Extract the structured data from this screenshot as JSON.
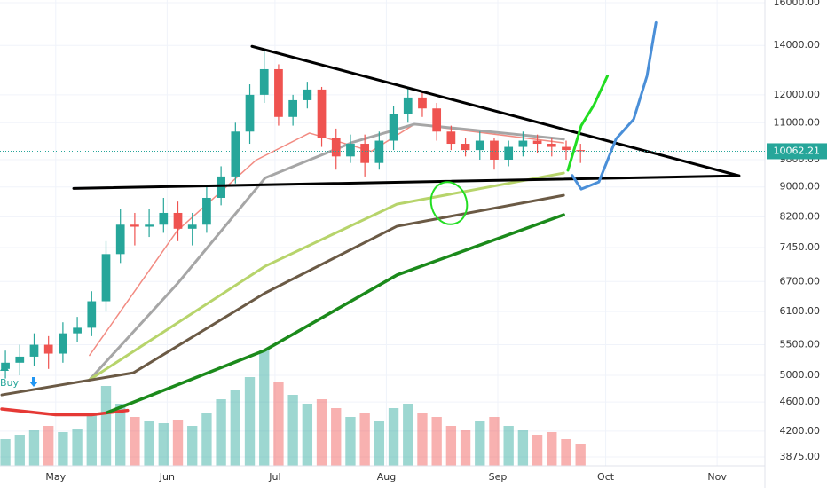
{
  "chart_data": {
    "type": "candlestick",
    "log_scale": true,
    "grid": true,
    "ylim": [
      3875,
      16000
    ],
    "yticks": [
      {
        "value": 3875,
        "label": "3875.00"
      },
      {
        "value": 4200,
        "label": "4200.00"
      },
      {
        "value": 4600,
        "label": "4600.00"
      },
      {
        "value": 5000,
        "label": "5000.00"
      },
      {
        "value": 5500,
        "label": "5500.00"
      },
      {
        "value": 6100,
        "label": "6100.00"
      },
      {
        "value": 6700,
        "label": "6700.00"
      },
      {
        "value": 7450,
        "label": "7450.00"
      },
      {
        "value": 8200,
        "label": "8200.00"
      },
      {
        "value": 9000,
        "label": "9000.00"
      },
      {
        "value": 9800,
        "label": "9800.00"
      },
      {
        "value": 11000,
        "label": "11000.00"
      },
      {
        "value": 12000,
        "label": "12000.00"
      },
      {
        "value": 14000,
        "label": "14000.00"
      },
      {
        "value": 16000,
        "label": "16000.00"
      }
    ],
    "xlim": [
      -15.5,
      197.3
    ],
    "xticks": [
      {
        "value": 0,
        "label": "May"
      },
      {
        "value": 31,
        "label": "Jun"
      },
      {
        "value": 61,
        "label": "Jul"
      },
      {
        "value": 92,
        "label": "Aug"
      },
      {
        "value": 123,
        "label": "Sep"
      },
      {
        "value": 153,
        "label": "Oct"
      },
      {
        "value": 184,
        "label": "Nov"
      }
    ],
    "up_color": "#26a69a",
    "down_color": "#ef5350",
    "x": [
      -14,
      -10,
      -6,
      -2,
      2,
      6,
      10,
      14,
      18,
      22,
      26,
      30,
      34,
      38,
      42,
      46,
      50,
      54,
      58,
      62,
      66,
      70,
      74,
      78,
      82,
      86,
      90,
      94,
      98,
      102,
      106,
      110,
      114,
      118,
      122,
      126,
      130,
      134,
      138,
      142,
      146
    ],
    "open": [
      5100,
      5200,
      5300,
      5500,
      5350,
      5700,
      5800,
      6300,
      7300,
      8000,
      7950,
      8000,
      8300,
      7900,
      8000,
      8700,
      9300,
      10700,
      12000,
      13000,
      11200,
      11800,
      12200,
      10500,
      9900,
      10300,
      9700,
      10400,
      11300,
      11900,
      11500,
      10700,
      10300,
      10100,
      10400,
      9800,
      10200,
      10400,
      10300,
      10200,
      10100
    ],
    "high": [
      5400,
      5500,
      5700,
      5650,
      5900,
      6000,
      6500,
      7600,
      8400,
      8300,
      8400,
      8700,
      8600,
      8300,
      9000,
      9600,
      11000,
      12400,
      13800,
      13200,
      12000,
      12500,
      12300,
      10800,
      10600,
      10600,
      10700,
      11600,
      12300,
      12100,
      11700,
      10900,
      10500,
      10700,
      10500,
      10400,
      10700,
      10600,
      10500,
      10400,
      10300
    ],
    "low": [
      4950,
      5000,
      5150,
      5100,
      5200,
      5550,
      5650,
      6100,
      7100,
      7500,
      7700,
      7800,
      7600,
      7500,
      7800,
      8500,
      9100,
      10300,
      11700,
      10900,
      10900,
      11500,
      10200,
      9500,
      9700,
      9300,
      9500,
      10100,
      11000,
      11200,
      10400,
      10100,
      9900,
      9800,
      9500,
      9600,
      9900,
      10000,
      9900,
      9800,
      9700
    ],
    "close": [
      5200,
      5300,
      5500,
      5350,
      5700,
      5800,
      6300,
      7300,
      8000,
      7950,
      8000,
      8300,
      7900,
      8000,
      8700,
      9300,
      10700,
      12000,
      13000,
      11200,
      11800,
      12200,
      10500,
      9900,
      10300,
      9700,
      10400,
      11300,
      11900,
      11500,
      10700,
      10300,
      10100,
      10400,
      9800,
      10200,
      10400,
      10300,
      10200,
      10100,
      10062.21
    ],
    "volume": [
      30,
      35,
      40,
      45,
      38,
      42,
      60,
      90,
      70,
      55,
      50,
      48,
      52,
      45,
      60,
      75,
      85,
      100,
      130,
      95,
      80,
      70,
      75,
      65,
      55,
      60,
      50,
      65,
      70,
      60,
      55,
      45,
      40,
      50,
      55,
      45,
      40,
      35,
      38,
      30,
      25
    ],
    "last_price": 10062.21,
    "last_price_color": "#26a69a",
    "lines": [
      {
        "color": "#f28b82",
        "width": 1.5,
        "x": [
          9.4,
          33.8,
          55.8,
          70.6,
          87.8,
          99.8,
          141.3
        ],
        "values": [
          5320,
          7850,
          9790,
          10650,
          10060,
          10950,
          10330
        ]
      },
      {
        "color": "#a6a6a6",
        "width": 3,
        "x": [
          9.4,
          33.8,
          58.3,
          82.7,
          99.8,
          141.3
        ],
        "values": [
          4930,
          6650,
          9260,
          10350,
          10950,
          10450
        ]
      },
      {
        "color": "#b7d46b",
        "width": 3,
        "x": [
          9.4,
          58.3,
          94.9,
          141.3
        ],
        "values": [
          4930,
          7030,
          8530,
          9400
        ]
      },
      {
        "color": "#6b5a45",
        "width": 3,
        "x": [
          -15,
          21.6,
          58.3,
          94.9,
          141.3
        ],
        "values": [
          4703,
          5039,
          6466,
          7960,
          8770
        ]
      },
      {
        "color": "#e53935",
        "width": 3.5,
        "x": [
          -15,
          0,
          10,
          20
        ],
        "values": [
          4500,
          4420,
          4420,
          4480
        ]
      },
      {
        "color": "#1b8a1b",
        "width": 3.5,
        "x": [
          14.3,
          58,
          95,
          141.3
        ],
        "values": [
          4450,
          5400,
          6840,
          8250
        ]
      }
    ],
    "trendlines": [
      {
        "color": "#000000",
        "width": 3,
        "x": [
          54.6,
          190.1
        ],
        "values": [
          13960,
          9320
        ]
      },
      {
        "color": "#000000",
        "width": 3,
        "x": [
          5,
          190.1
        ],
        "values": [
          8960,
          9320
        ]
      }
    ],
    "projections": [
      {
        "color": "#22dd22",
        "x": [
          142.5,
          146.2,
          149.8,
          153.5
        ],
        "values": [
          9480,
          10900,
          11640,
          12730
        ]
      },
      {
        "color": "#4a8fd8",
        "x": [
          143.7,
          146.2,
          151.1,
          155.9,
          160.8,
          164.5,
          167
        ],
        "values": [
          9330,
          8940,
          9140,
          10460,
          11120,
          12730,
          15040
        ]
      }
    ],
    "signal_label": "Buy"
  }
}
